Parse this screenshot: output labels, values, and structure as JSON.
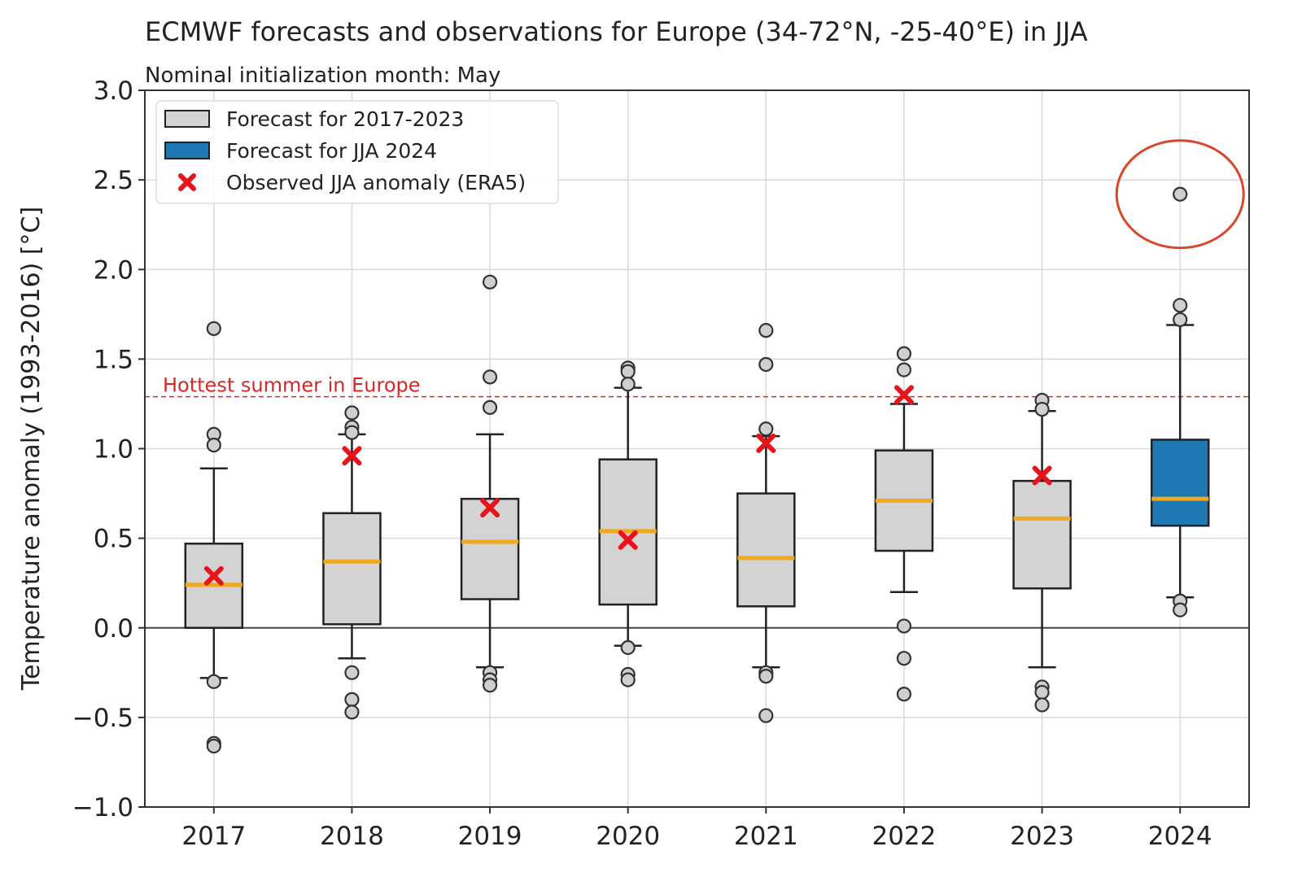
{
  "chart_data": {
    "type": "box",
    "title": "ECMWF forecasts and observations for Europe (34-72°N, -25-40°E) in JJA",
    "subtitle": "Nominal initialization month: May",
    "xlabel": "",
    "ylabel": "Temperature anomaly (1993-2016) [°C]",
    "ylim": [
      -1.0,
      3.0
    ],
    "yticks": [
      "−1.0",
      "−0.5",
      "0.0",
      "0.5",
      "1.0",
      "1.5",
      "2.0",
      "2.5",
      "3.0"
    ],
    "ytick_values": [
      -1.0,
      -0.5,
      0.0,
      0.5,
      1.0,
      1.5,
      2.0,
      2.5,
      3.0
    ],
    "grid": true,
    "legend_placement": "top-left",
    "legend": [
      {
        "label": "Forecast for 2017-2023",
        "kind": "box",
        "color": "#d3d3d3"
      },
      {
        "label": "Forecast for JJA 2024",
        "kind": "box",
        "color": "#1f77b4"
      },
      {
        "label": "Observed JJA anomaly (ERA5)",
        "kind": "x-marker",
        "color": "#e8141c"
      }
    ],
    "reference_line": {
      "label": "Hottest summer in Europe",
      "value": 1.29,
      "color": "#d62728",
      "style": "dashed"
    },
    "median_color": "#f2a81d",
    "highlight_circle": {
      "category": "2024",
      "value": 2.42,
      "color": "#d9472b"
    },
    "categories": [
      "2017",
      "2018",
      "2019",
      "2020",
      "2021",
      "2022",
      "2023",
      "2024"
    ],
    "boxes": [
      {
        "category": "2017",
        "q1": 0.0,
        "median": 0.24,
        "q3": 0.47,
        "whisker_low": -0.28,
        "whisker_high": 0.89,
        "outliers": [
          1.67,
          1.08,
          1.02,
          -0.3,
          -0.645,
          -0.66
        ],
        "observed": 0.29,
        "color": "#d3d3d3"
      },
      {
        "category": "2018",
        "q1": 0.02,
        "median": 0.37,
        "q3": 0.64,
        "whisker_low": -0.17,
        "whisker_high": 1.08,
        "outliers": [
          1.2,
          1.12,
          1.09,
          -0.25,
          -0.4,
          -0.47
        ],
        "observed": 0.96,
        "color": "#d3d3d3"
      },
      {
        "category": "2019",
        "q1": 0.16,
        "median": 0.48,
        "q3": 0.72,
        "whisker_low": -0.22,
        "whisker_high": 1.08,
        "outliers": [
          1.93,
          1.4,
          1.23,
          -0.25,
          -0.29,
          -0.32
        ],
        "observed": 0.67,
        "color": "#d3d3d3"
      },
      {
        "category": "2020",
        "q1": 0.13,
        "median": 0.54,
        "q3": 0.94,
        "whisker_low": -0.1,
        "whisker_high": 1.34,
        "outliers": [
          1.45,
          1.43,
          1.36,
          -0.11,
          -0.26,
          -0.29
        ],
        "observed": 0.49,
        "color": "#d3d3d3"
      },
      {
        "category": "2021",
        "q1": 0.12,
        "median": 0.39,
        "q3": 0.75,
        "whisker_low": -0.22,
        "whisker_high": 1.07,
        "outliers": [
          1.66,
          1.47,
          1.11,
          -0.25,
          -0.27,
          -0.49
        ],
        "observed": 1.03,
        "color": "#d3d3d3"
      },
      {
        "category": "2022",
        "q1": 0.43,
        "median": 0.71,
        "q3": 0.99,
        "whisker_low": 0.2,
        "whisker_high": 1.25,
        "outliers": [
          1.53,
          1.44,
          0.01,
          -0.17,
          -0.37
        ],
        "observed": 1.3,
        "color": "#d3d3d3"
      },
      {
        "category": "2023",
        "q1": 0.22,
        "median": 0.61,
        "q3": 0.82,
        "whisker_low": -0.22,
        "whisker_high": 1.21,
        "outliers": [
          1.27,
          1.22,
          -0.33,
          -0.36,
          -0.43
        ],
        "observed": 0.85,
        "color": "#d3d3d3"
      },
      {
        "category": "2024",
        "q1": 0.57,
        "median": 0.72,
        "q3": 1.05,
        "whisker_low": 0.17,
        "whisker_high": 1.69,
        "outliers": [
          2.42,
          1.8,
          1.72,
          0.15,
          0.1
        ],
        "observed": null,
        "color": "#1f77b4"
      }
    ]
  }
}
